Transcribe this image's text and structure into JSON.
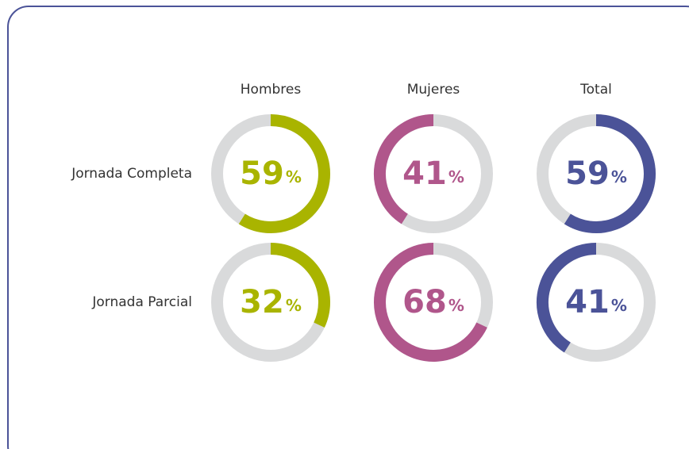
{
  "chart_data": {
    "type": "donut",
    "categories": [
      "Jornada Completa",
      "Jornada Parcial"
    ],
    "unit": "%",
    "track_color": "#d9dadb",
    "series": [
      {
        "name": "Hombres",
        "color": "#a9b400",
        "values": [
          59,
          32
        ],
        "clockwise": [
          true,
          true
        ]
      },
      {
        "name": "Mujeres",
        "color": "#b0568b",
        "values": [
          41,
          68
        ],
        "clockwise": [
          false,
          false
        ]
      },
      {
        "name": "Total",
        "color": "#4b5398",
        "values": [
          59,
          41
        ],
        "clockwise": [
          true,
          false
        ]
      }
    ]
  }
}
